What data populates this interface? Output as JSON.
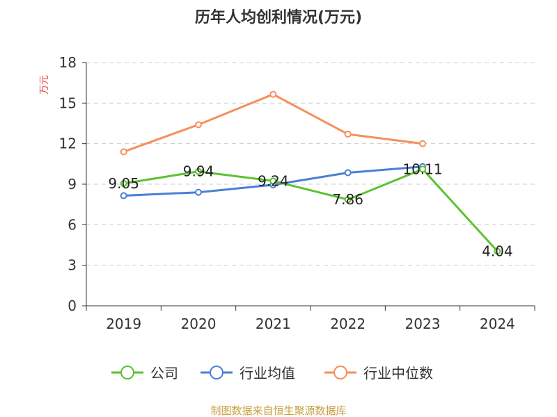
{
  "chart_data": {
    "type": "line",
    "title": "历年人均创利情况(万元)",
    "ylabel": "万元",
    "xlabel": "",
    "categories": [
      "2019",
      "2020",
      "2021",
      "2022",
      "2023",
      "2024"
    ],
    "ylim": [
      0,
      18
    ],
    "yticks": [
      0,
      3,
      6,
      9,
      12,
      15,
      18
    ],
    "grid": true,
    "legend_position": "bottom",
    "series": [
      {
        "name": "公司",
        "color": "#5dc12f",
        "values": [
          9.05,
          9.94,
          9.24,
          7.86,
          10.11,
          4.04
        ],
        "labels": [
          "9.05",
          "9.94",
          "9.24",
          "7.86",
          "10.11",
          "4.04"
        ]
      },
      {
        "name": "行业均值",
        "color": "#4a7fd4",
        "values": [
          8.15,
          8.4,
          8.95,
          9.85,
          10.3,
          null
        ]
      },
      {
        "name": "行业中位数",
        "color": "#f58f5a",
        "values": [
          11.4,
          13.4,
          15.65,
          12.7,
          12.0,
          null
        ]
      }
    ],
    "source": "制图数据来自恒生聚源数据库"
  }
}
